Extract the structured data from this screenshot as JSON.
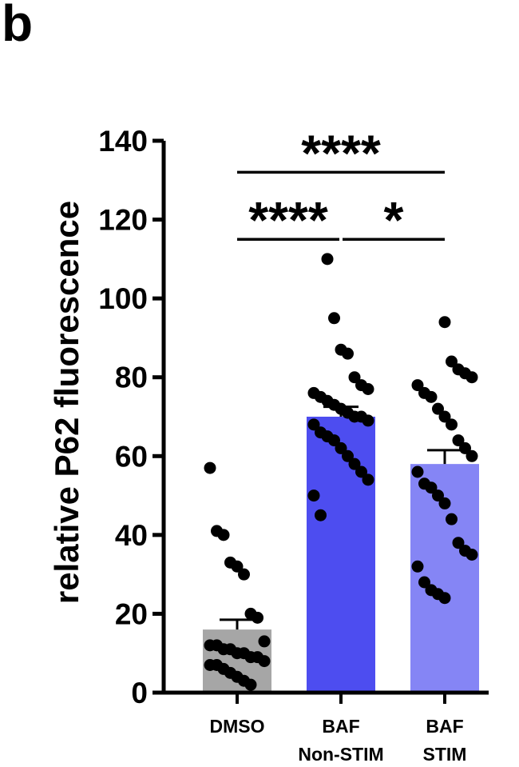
{
  "panel_label": "b",
  "chart_data": {
    "type": "bar",
    "ylabel": "relative P62 fluorescence",
    "ylim": [
      0,
      140
    ],
    "yticks": [
      "0",
      "20",
      "40",
      "60",
      "80",
      "100",
      "120",
      "140"
    ],
    "categories": [
      {
        "lines": [
          "DMSO"
        ]
      },
      {
        "lines": [
          "BAF",
          "Non-STIM"
        ]
      },
      {
        "lines": [
          "BAF",
          "STIM"
        ]
      }
    ],
    "bars": [
      {
        "mean": 16,
        "sem": 2.5,
        "color": "#a6a6a6"
      },
      {
        "mean": 70,
        "sem": 2.5,
        "color": "#4d4df0"
      },
      {
        "mean": 58,
        "sem": 3.5,
        "color": "#8585f5"
      }
    ],
    "points": [
      [
        57,
        41,
        40,
        33,
        32,
        30,
        20,
        19,
        13,
        12,
        12,
        11,
        11,
        10,
        10,
        9,
        9,
        8,
        7,
        7,
        6,
        5,
        4,
        3,
        2
      ],
      [
        110,
        95,
        87,
        86,
        80,
        78,
        77,
        76,
        75,
        74,
        73,
        72,
        71,
        70,
        70,
        69,
        68,
        66,
        65,
        64,
        62,
        60,
        58,
        56,
        54,
        50,
        45
      ],
      [
        94,
        84,
        82,
        81,
        80,
        78,
        76,
        75,
        72,
        70,
        68,
        64,
        62,
        60,
        56,
        53,
        52,
        50,
        48,
        44,
        38,
        36,
        35,
        32,
        28,
        26,
        25,
        24
      ]
    ],
    "significance": [
      {
        "from": 0,
        "to": 2,
        "y": 132,
        "label": "****"
      },
      {
        "from": 0,
        "to": 1,
        "y": 115,
        "label": "****"
      },
      {
        "from": 1,
        "to": 2,
        "y": 115,
        "label": "*"
      }
    ]
  }
}
